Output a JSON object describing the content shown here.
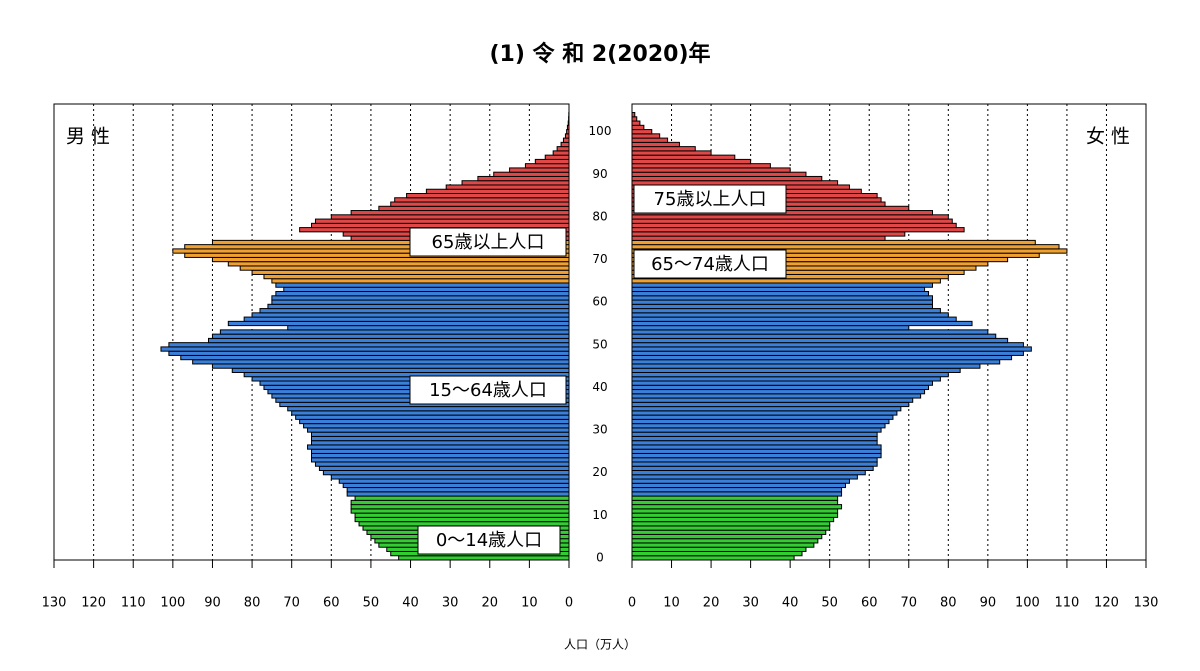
{
  "chart_data": {
    "type": "pyramid",
    "title": "(1) 令 和 2(2020)年",
    "xlabel": "人口（万人）",
    "ages": [
      0,
      1,
      2,
      3,
      4,
      5,
      6,
      7,
      8,
      9,
      10,
      11,
      12,
      13,
      14,
      15,
      16,
      17,
      18,
      19,
      20,
      21,
      22,
      23,
      24,
      25,
      26,
      27,
      28,
      29,
      30,
      31,
      32,
      33,
      34,
      35,
      36,
      37,
      38,
      39,
      40,
      41,
      42,
      43,
      44,
      45,
      46,
      47,
      48,
      49,
      50,
      51,
      52,
      53,
      54,
      55,
      56,
      57,
      58,
      59,
      60,
      61,
      62,
      63,
      64,
      65,
      66,
      67,
      68,
      69,
      70,
      71,
      72,
      73,
      74,
      75,
      76,
      77,
      78,
      79,
      80,
      81,
      82,
      83,
      84,
      85,
      86,
      87,
      88,
      89,
      90,
      91,
      92,
      93,
      94,
      95,
      96,
      97,
      98,
      99,
      100,
      101,
      102,
      103,
      104
    ],
    "series": [
      {
        "name": "男 性",
        "side": "left",
        "values": [
          43,
          45,
          46,
          48,
          49,
          50,
          51,
          52,
          53,
          54,
          54,
          55,
          55,
          55,
          54,
          56,
          56,
          57,
          58,
          60,
          62,
          63,
          64,
          65,
          65,
          65,
          66,
          65,
          65,
          65,
          66,
          67,
          68,
          69,
          70,
          71,
          73,
          74,
          75,
          76,
          77,
          78,
          80,
          82,
          85,
          90,
          95,
          98,
          101,
          103,
          101,
          91,
          90,
          88,
          71,
          86,
          82,
          80,
          78,
          76,
          75,
          75,
          74,
          72,
          74,
          75,
          77,
          80,
          83,
          86,
          90,
          97,
          100,
          97,
          90,
          55,
          57,
          68,
          65,
          64,
          60,
          55,
          48,
          45,
          44,
          41,
          36,
          31,
          27,
          23,
          19,
          15,
          11,
          8.5,
          6,
          4,
          3,
          2,
          1.4,
          0.9,
          0.6,
          0.4,
          0.2,
          0.1,
          0.05
        ]
      },
      {
        "name": "女 性",
        "side": "right",
        "values": [
          41,
          43,
          44,
          46,
          47,
          48,
          49,
          50,
          50,
          51,
          52,
          52,
          53,
          52,
          52,
          53,
          53,
          54,
          55,
          57,
          59,
          61,
          62,
          62,
          63,
          63,
          63,
          62,
          62,
          62,
          63,
          64,
          65,
          66,
          67,
          68,
          70,
          71,
          73,
          74,
          75,
          76,
          78,
          80,
          83,
          88,
          93,
          96,
          99,
          101,
          99,
          95,
          92,
          90,
          70,
          86,
          82,
          80,
          78,
          76,
          76,
          76,
          75,
          74,
          76,
          78,
          80,
          84,
          87,
          90,
          95,
          103,
          110,
          108,
          102,
          64,
          69,
          84,
          82,
          81,
          80,
          76,
          70,
          64,
          63,
          62,
          58,
          55,
          52,
          48,
          44,
          40,
          35,
          30,
          26,
          20,
          16,
          12,
          9,
          7,
          5,
          3,
          2,
          1.2,
          0.7
        ]
      }
    ],
    "groups": [
      {
        "from": 0,
        "to": 14,
        "color": "#33cc33"
      },
      {
        "from": 15,
        "to": 64,
        "color": "#3a7fd9"
      },
      {
        "from": 65,
        "to": 74,
        "color": "#f0a030"
      },
      {
        "from": 75,
        "to": 104,
        "color": "#e04848"
      }
    ],
    "annotations": [
      {
        "text": "65歳以上人口"
      },
      {
        "text": "15～64歳人口"
      },
      {
        "text": "0～14歳人口"
      },
      {
        "text": "75歳以上人口"
      },
      {
        "text": "65～74歳人口"
      }
    ],
    "xlim": [
      0,
      130
    ],
    "xticks": [
      0,
      10,
      20,
      30,
      40,
      50,
      60,
      70,
      80,
      90,
      100,
      110,
      120,
      130
    ],
    "ylim": [
      -0.5,
      106.5
    ],
    "yticks": [
      0,
      10,
      20,
      30,
      40,
      50,
      60,
      70,
      80,
      90,
      100
    ],
    "grid": true
  }
}
